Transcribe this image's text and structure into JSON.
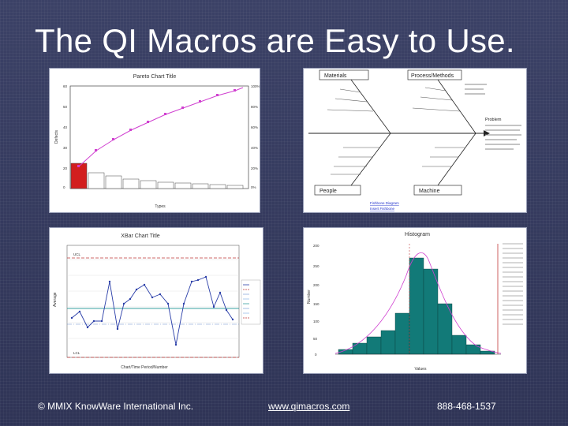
{
  "slide": {
    "title": "The QI Macros are Easy to Use.",
    "footer": {
      "copyright": "© MMIX KnowWare International Inc.",
      "url": "www.qimacros.com",
      "phone": "888-468-1537"
    }
  },
  "pareto": {
    "title": "Pareto Chart Title",
    "ylabel": "Defects",
    "xlabel": "Types"
  },
  "fishbone": {
    "categories": [
      "Materials",
      "Process/Methods",
      "People",
      "Machine"
    ],
    "problem_label": "Problem",
    "links": [
      "Fishbone Diagram",
      "Insert Fishbone"
    ]
  },
  "xbar": {
    "title": "XBar Chart Title",
    "xlabel": "Chart/Time Period/Number",
    "ylabel": "Average",
    "ucl_label": "UCL",
    "lcl_label": "LCL"
  },
  "histogram": {
    "title": "Histogram",
    "ylabel": "Number",
    "xlabel": "Values"
  },
  "colors": {
    "pareto_bar_red": "#d21e1e",
    "pareto_line": "#d040d0",
    "xbar_line": "#2a3ea8",
    "xbar_limit": "#c03a3a",
    "xbar_center": "#3aa0a0",
    "hist_bar": "#127a78",
    "hist_curve": "#d040d0"
  }
}
